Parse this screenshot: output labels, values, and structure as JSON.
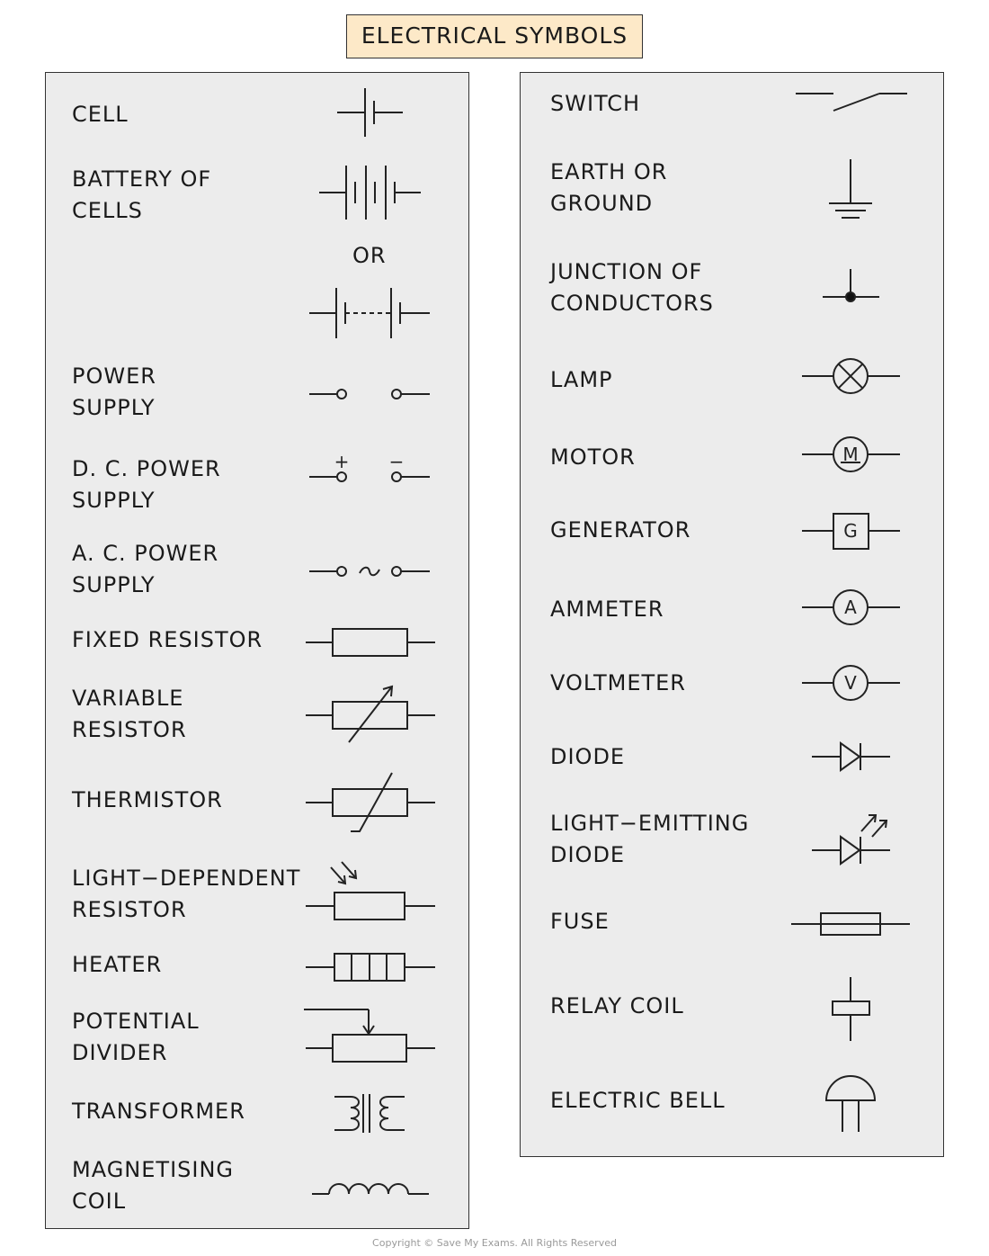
{
  "title": "ELECTRICAL SYMBOLS",
  "left_items": {
    "cell": "CELL",
    "battery": "BATTERY OF\nCELLS",
    "or": "OR",
    "power_supply": "POWER\nSUPPLY",
    "dc_power_supply": "D. C. POWER\nSUPPLY",
    "ac_power_supply": "A. C. POWER\nSUPPLY",
    "fixed_resistor": "FIXED RESISTOR",
    "variable_resistor": "VARIABLE\nRESISTOR",
    "thermistor": "THERMISTOR",
    "ldr": "LIGHT−DEPENDENT\nRESISTOR",
    "heater": "HEATER",
    "potential_divider": "POTENTIAL\nDIVIDER",
    "transformer": "TRANSFORMER",
    "magnetising_coil": "MAGNETISING\nCOIL"
  },
  "right_items": {
    "switch": "SWITCH",
    "earth": "EARTH OR\nGROUND",
    "junction": "JUNCTION OF\nCONDUCTORS",
    "lamp": "LAMP",
    "motor": "MOTOR",
    "generator": "GENERATOR",
    "ammeter": "AMMETER",
    "voltmeter": "VOLTMETER",
    "diode": "DIODE",
    "led": "LIGHT−EMITTING\nDIODE",
    "fuse": "FUSE",
    "relay_coil": "RELAY COIL",
    "electric_bell": "ELECTRIC BELL"
  },
  "symbol_text": {
    "plus": "+",
    "minus": "−",
    "motor": "M",
    "generator": "G",
    "ammeter": "A",
    "voltmeter": "V"
  },
  "copyright": "Copyright © Save My Exams. All Rights Reserved"
}
